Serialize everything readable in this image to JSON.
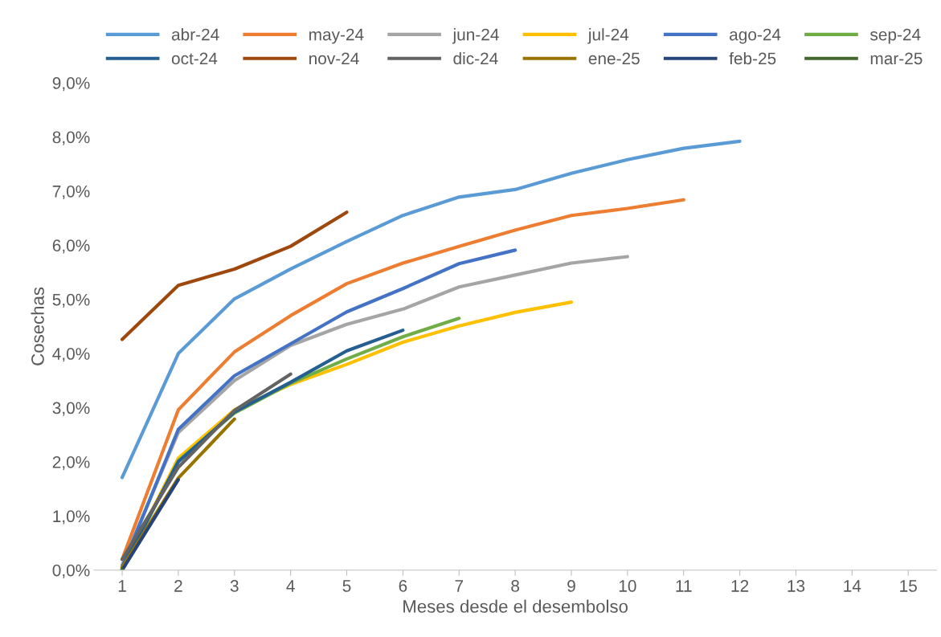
{
  "chart_data": {
    "type": "line",
    "xlabel": "Meses desde el desembolso",
    "ylabel": "Cosechas",
    "categories": [
      "1",
      "2",
      "3",
      "4",
      "5",
      "6",
      "7",
      "8",
      "9",
      "10",
      "11",
      "12",
      "13",
      "14",
      "15"
    ],
    "ylim": [
      0,
      9
    ],
    "yticks": [
      {
        "value": 0,
        "label": "0,0%"
      },
      {
        "value": 1,
        "label": "1,0%"
      },
      {
        "value": 2,
        "label": "2,0%"
      },
      {
        "value": 3,
        "label": "3,0%"
      },
      {
        "value": 4,
        "label": "4,0%"
      },
      {
        "value": 5,
        "label": "5,0%"
      },
      {
        "value": 6,
        "label": "6,0%"
      },
      {
        "value": 7,
        "label": "7,0%"
      },
      {
        "value": 8,
        "label": "8,0%"
      },
      {
        "value": 9,
        "label": "9,0%"
      }
    ],
    "grid": false,
    "legend": "top",
    "marker": "none",
    "line_style": "solid",
    "series": [
      {
        "name": "abr-24",
        "color": "#5b9bd5",
        "values": [
          1.71,
          4.0,
          5.01,
          5.56,
          6.07,
          6.55,
          6.89,
          7.03,
          7.33,
          7.58,
          7.79,
          7.92,
          null,
          null,
          null
        ]
      },
      {
        "name": "may-24",
        "color": "#ed7d31",
        "values": [
          0.2,
          2.96,
          4.03,
          4.7,
          5.29,
          5.67,
          5.98,
          6.28,
          6.55,
          6.68,
          6.84,
          null,
          null,
          null,
          null
        ]
      },
      {
        "name": "jun-24",
        "color": "#a5a5a5",
        "values": [
          0.1,
          2.54,
          3.5,
          4.15,
          4.54,
          4.82,
          5.23,
          5.45,
          5.67,
          5.79,
          null,
          null,
          null,
          null,
          null
        ]
      },
      {
        "name": "jul-24",
        "color": "#ffc000",
        "values": [
          0.0,
          2.07,
          2.96,
          3.43,
          3.8,
          4.21,
          4.51,
          4.76,
          4.95,
          null,
          null,
          null,
          null,
          null,
          null
        ]
      },
      {
        "name": "ago-24",
        "color": "#4472c4",
        "values": [
          0.05,
          2.6,
          3.59,
          4.18,
          4.77,
          5.2,
          5.66,
          5.91,
          null,
          null,
          null,
          null,
          null,
          null,
          null
        ]
      },
      {
        "name": "sep-24",
        "color": "#70ad47",
        "values": [
          0.0,
          2.02,
          2.9,
          3.45,
          3.9,
          4.31,
          4.65,
          null,
          null,
          null,
          null,
          null,
          null,
          null,
          null
        ]
      },
      {
        "name": "oct-24",
        "color": "#255e91",
        "values": [
          0.05,
          2.0,
          2.92,
          3.47,
          4.05,
          4.43,
          null,
          null,
          null,
          null,
          null,
          null,
          null,
          null,
          null
        ]
      },
      {
        "name": "nov-24",
        "color": "#9e480e",
        "values": [
          4.26,
          5.26,
          5.56,
          5.98,
          6.61,
          null,
          null,
          null,
          null,
          null,
          null,
          null,
          null,
          null,
          null
        ]
      },
      {
        "name": "dic-24",
        "color": "#636363",
        "values": [
          0.2,
          1.9,
          2.95,
          3.62,
          null,
          null,
          null,
          null,
          null,
          null,
          null,
          null,
          null,
          null,
          null
        ]
      },
      {
        "name": "ene-25",
        "color": "#997300",
        "values": [
          0.05,
          1.7,
          2.79,
          null,
          null,
          null,
          null,
          null,
          null,
          null,
          null,
          null,
          null,
          null,
          null
        ]
      },
      {
        "name": "feb-25",
        "color": "#264478",
        "values": [
          0.0,
          1.67,
          null,
          null,
          null,
          null,
          null,
          null,
          null,
          null,
          null,
          null,
          null,
          null,
          null
        ]
      },
      {
        "name": "mar-25",
        "color": "#43682b",
        "values": [
          0.0,
          null,
          null,
          null,
          null,
          null,
          null,
          null,
          null,
          null,
          null,
          null,
          null,
          null,
          null
        ]
      }
    ]
  }
}
